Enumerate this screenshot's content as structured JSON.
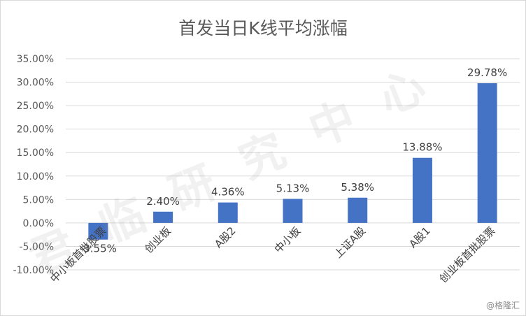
{
  "chart_data": {
    "type": "bar",
    "title": "首发当日K线平均涨幅",
    "categories": [
      "中小板首批股票",
      "创业板",
      "A股2",
      "中小板",
      "上证A股",
      "A股1",
      "创业板首批股票"
    ],
    "values": [
      -3.55,
      2.4,
      4.36,
      5.13,
      5.38,
      13.88,
      29.78
    ],
    "data_labels": [
      "-3.55%",
      "2.40%",
      "4.36%",
      "5.13%",
      "5.38%",
      "13.88%",
      "29.78%"
    ],
    "yticks": [
      "35.00%",
      "30.00%",
      "25.00%",
      "20.00%",
      "15.00%",
      "10.00%",
      "5.00%",
      "0.00%",
      "-5.00%",
      "-10.00%"
    ],
    "ylim": [
      -10,
      35
    ],
    "grid": true,
    "legend": "none",
    "bar_color": "#4472C4"
  },
  "watermark": "君临研究中心",
  "credit": "@格隆汇"
}
